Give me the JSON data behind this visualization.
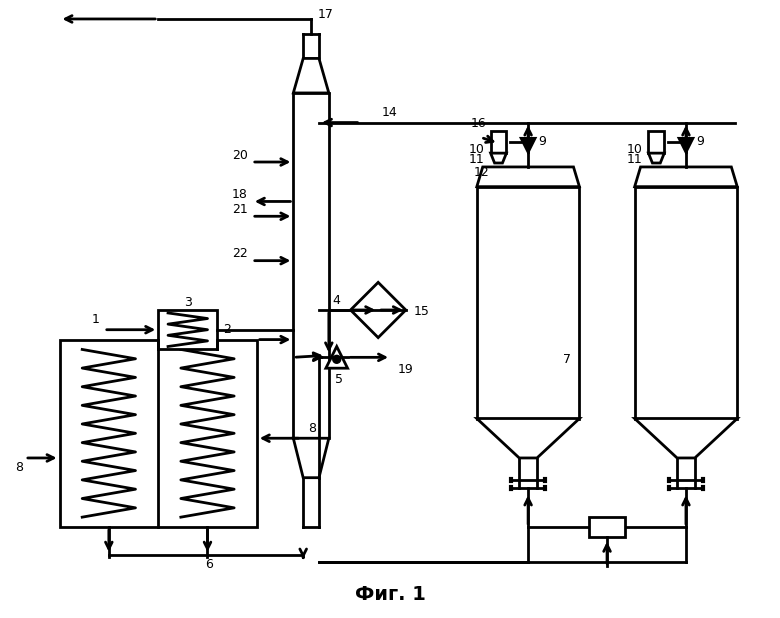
{
  "title": "Фиг. 1",
  "bg_color": "#ffffff",
  "line_color": "#000000",
  "lw": 2.0,
  "fs": 9
}
